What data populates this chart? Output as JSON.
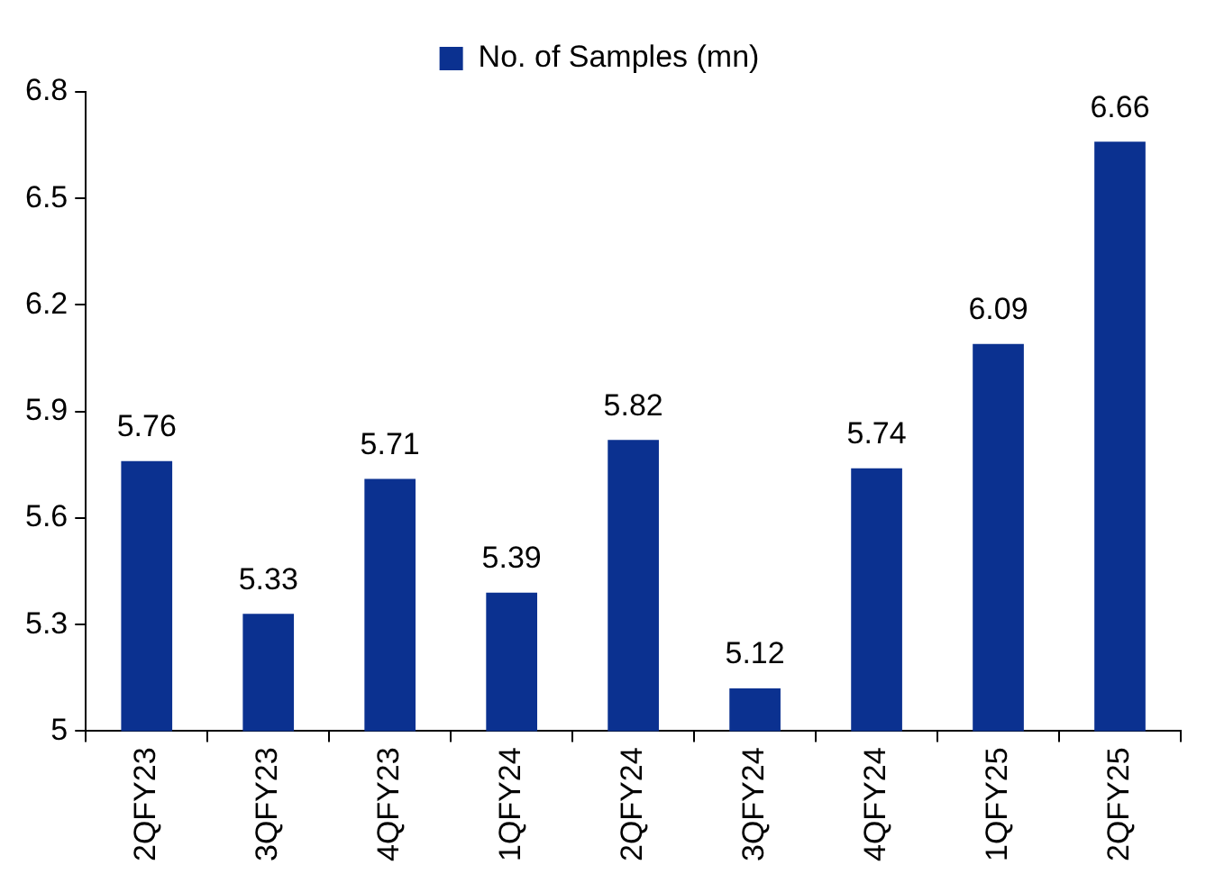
{
  "chart_data": {
    "type": "bar",
    "categories": [
      "2QFY23",
      "3QFY23",
      "4QFY23",
      "1QFY24",
      "2QFY24",
      "3QFY24",
      "4QFY24",
      "1QFY25",
      "2QFY25"
    ],
    "series": [
      {
        "name": "No. of Samples (mn)",
        "color": "#0b3190",
        "values": [
          5.76,
          5.33,
          5.71,
          5.39,
          5.82,
          5.12,
          5.74,
          6.09,
          6.66
        ]
      }
    ],
    "ylim": [
      5,
      6.8
    ],
    "yticks": [
      5,
      5.3,
      5.6,
      5.9,
      6.2,
      6.5,
      6.8
    ],
    "grid": false,
    "legend": "top",
    "data_labels": true
  }
}
